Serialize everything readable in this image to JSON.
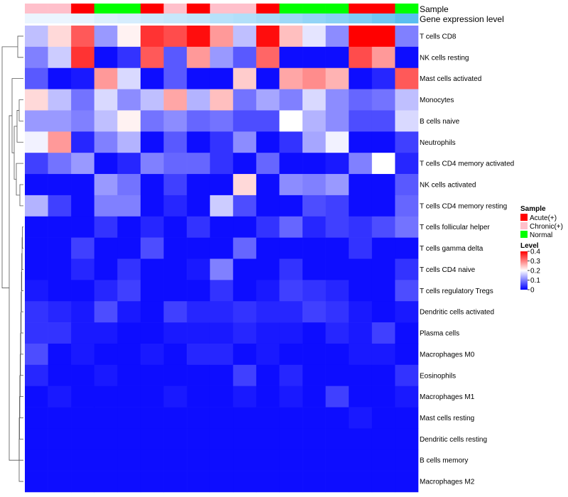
{
  "chart_data": {
    "type": "heatmap",
    "title": "",
    "annotation_track_labels": {
      "sample": "Sample",
      "expression": "Gene expression level"
    },
    "sample_annotation": [
      "Chronic(+)",
      "Chronic(+)",
      "Acute(+)",
      "Normal",
      "Normal",
      "Acute(+)",
      "Chronic(+)",
      "Acute(+)",
      "Chronic(+)",
      "Chronic(+)",
      "Acute(+)",
      "Normal",
      "Normal",
      "Normal",
      "Acute(+)",
      "Acute(+)",
      "Normal"
    ],
    "expression_annotation": [
      0.02,
      0.02,
      0.03,
      0.05,
      0.06,
      0.08,
      0.09,
      0.1,
      0.12,
      0.13,
      0.15,
      0.17,
      0.19,
      0.21,
      0.23,
      0.26,
      0.3
    ],
    "rows": [
      "T cells CD8",
      "NK cells resting",
      "Mast cells activated",
      "Monocytes",
      "B cells naive",
      "Neutrophils",
      "T cells CD4 memory activated",
      "NK cells activated",
      "T cells CD4 memory resting",
      "T cells follicular helper",
      "T cells gamma delta",
      "T cells CD4 naive",
      "T cells regulatory  Tregs",
      "Dendritic cells activated",
      "Plasma cells",
      "Macrophages M0",
      "Eosinophils",
      "Macrophages M1",
      "Mast cells resting",
      "Dendritic cells resting",
      "B cells memory",
      "Macrophages M2"
    ],
    "values": [
      [
        0.15,
        0.23,
        0.33,
        0.12,
        0.21,
        0.36,
        0.34,
        0.39,
        0.28,
        0.15,
        0.39,
        0.25,
        0.18,
        0.11,
        0.4,
        0.4,
        0.1
      ],
      [
        0.1,
        0.16,
        0.36,
        0.01,
        0.04,
        0.33,
        0.07,
        0.28,
        0.12,
        0.07,
        0.32,
        0.01,
        0.01,
        0.01,
        0.34,
        0.28,
        0.01
      ],
      [
        0.07,
        0.01,
        0.02,
        0.28,
        0.17,
        0.01,
        0.07,
        0.01,
        0.01,
        0.24,
        0.01,
        0.27,
        0.29,
        0.26,
        0.01,
        0.03,
        0.33
      ],
      [
        0.23,
        0.15,
        0.09,
        0.17,
        0.11,
        0.15,
        0.27,
        0.14,
        0.25,
        0.09,
        0.13,
        0.1,
        0.17,
        0.11,
        0.08,
        0.09,
        0.15
      ],
      [
        0.12,
        0.12,
        0.1,
        0.15,
        0.21,
        0.09,
        0.11,
        0.08,
        0.09,
        0.06,
        0.06,
        0.2,
        0.14,
        0.11,
        0.06,
        0.06,
        0.17
      ],
      [
        0.19,
        0.28,
        0.03,
        0.1,
        0.14,
        0.01,
        0.07,
        0.01,
        0.04,
        0.11,
        0.01,
        0.04,
        0.13,
        0.19,
        0.01,
        0.01,
        0.05
      ],
      [
        0.05,
        0.09,
        0.12,
        0.01,
        0.03,
        0.1,
        0.08,
        0.08,
        0.04,
        0.01,
        0.08,
        0.01,
        0.01,
        0.02,
        0.1,
        0.2,
        0.03
      ],
      [
        0.01,
        0.01,
        0.01,
        0.12,
        0.09,
        0.01,
        0.05,
        0.01,
        0.01,
        0.23,
        0.01,
        0.11,
        0.1,
        0.12,
        0.01,
        0.01,
        0.07
      ],
      [
        0.14,
        0.05,
        0.01,
        0.1,
        0.1,
        0.01,
        0.03,
        0.01,
        0.16,
        0.06,
        0.01,
        0.01,
        0.06,
        0.05,
        0.01,
        0.01,
        0.08
      ],
      [
        0.01,
        0.01,
        0.01,
        0.04,
        0.01,
        0.03,
        0.01,
        0.04,
        0.01,
        0.01,
        0.04,
        0.08,
        0.03,
        0.05,
        0.04,
        0.06,
        0.09
      ],
      [
        0.01,
        0.01,
        0.05,
        0.01,
        0.01,
        0.06,
        0.01,
        0.01,
        0.01,
        0.08,
        0.01,
        0.01,
        0.01,
        0.01,
        0.04,
        0.01,
        0.01
      ],
      [
        0.01,
        0.01,
        0.03,
        0.01,
        0.04,
        0.01,
        0.01,
        0.02,
        0.1,
        0.01,
        0.01,
        0.04,
        0.01,
        0.01,
        0.01,
        0.01,
        0.04
      ],
      [
        0.02,
        0.01,
        0.01,
        0.03,
        0.05,
        0.01,
        0.01,
        0.01,
        0.04,
        0.01,
        0.02,
        0.05,
        0.04,
        0.03,
        0.01,
        0.01,
        0.06
      ],
      [
        0.04,
        0.03,
        0.02,
        0.06,
        0.02,
        0.01,
        0.05,
        0.03,
        0.03,
        0.04,
        0.03,
        0.03,
        0.05,
        0.04,
        0.02,
        0.01,
        0.02
      ],
      [
        0.04,
        0.04,
        0.02,
        0.02,
        0.01,
        0.01,
        0.02,
        0.02,
        0.02,
        0.03,
        0.02,
        0.02,
        0.01,
        0.03,
        0.02,
        0.05,
        0.01
      ],
      [
        0.06,
        0.01,
        0.02,
        0.01,
        0.01,
        0.02,
        0.01,
        0.03,
        0.03,
        0.01,
        0.02,
        0.01,
        0.01,
        0.01,
        0.02,
        0.02,
        0.01
      ],
      [
        0.03,
        0.01,
        0.01,
        0.02,
        0.01,
        0.01,
        0.01,
        0.01,
        0.01,
        0.05,
        0.01,
        0.03,
        0.01,
        0.01,
        0.01,
        0.01,
        0.04
      ],
      [
        0.01,
        0.02,
        0.01,
        0.01,
        0.01,
        0.01,
        0.02,
        0.01,
        0.01,
        0.02,
        0.01,
        0.02,
        0.01,
        0.05,
        0.01,
        0.01,
        0.02
      ],
      [
        0.01,
        0.01,
        0.01,
        0.01,
        0.01,
        0.01,
        0.01,
        0.01,
        0.01,
        0.01,
        0.01,
        0.01,
        0.01,
        0.01,
        0.02,
        0.01,
        0.01
      ],
      [
        0.01,
        0.01,
        0.01,
        0.01,
        0.01,
        0.01,
        0.01,
        0.01,
        0.01,
        0.01,
        0.01,
        0.01,
        0.01,
        0.01,
        0.01,
        0.01,
        0.01
      ],
      [
        0.01,
        0.01,
        0.01,
        0.01,
        0.01,
        0.01,
        0.01,
        0.01,
        0.01,
        0.01,
        0.01,
        0.01,
        0.01,
        0.01,
        0.01,
        0.01,
        0.01
      ],
      [
        0.01,
        0.01,
        0.01,
        0.01,
        0.01,
        0.01,
        0.01,
        0.01,
        0.01,
        0.01,
        0.01,
        0.01,
        0.01,
        0.01,
        0.01,
        0.01,
        0.01
      ]
    ],
    "color_scale": {
      "min": 0,
      "mid": 0.2,
      "max": 0.4,
      "low": "#0000FF",
      "midColor": "#FFFFFF",
      "high": "#FF0000"
    },
    "legend_sample": {
      "title": "Sample",
      "entries": [
        {
          "label": "Acute(+)",
          "color": "#FF0000"
        },
        {
          "label": "Chronic(+)",
          "color": "#FFC0CB"
        },
        {
          "label": "Normal",
          "color": "#00FF00"
        }
      ]
    },
    "legend_level": {
      "title": "Level",
      "ticks": [
        {
          "label": "0.4",
          "value": 0.4
        },
        {
          "label": "0.3",
          "value": 0.3
        },
        {
          "label": "0.2",
          "value": 0.2
        },
        {
          "label": "0.1",
          "value": 0.1
        },
        {
          "label": "0",
          "value": 0
        }
      ]
    },
    "dendrogram": "row"
  }
}
